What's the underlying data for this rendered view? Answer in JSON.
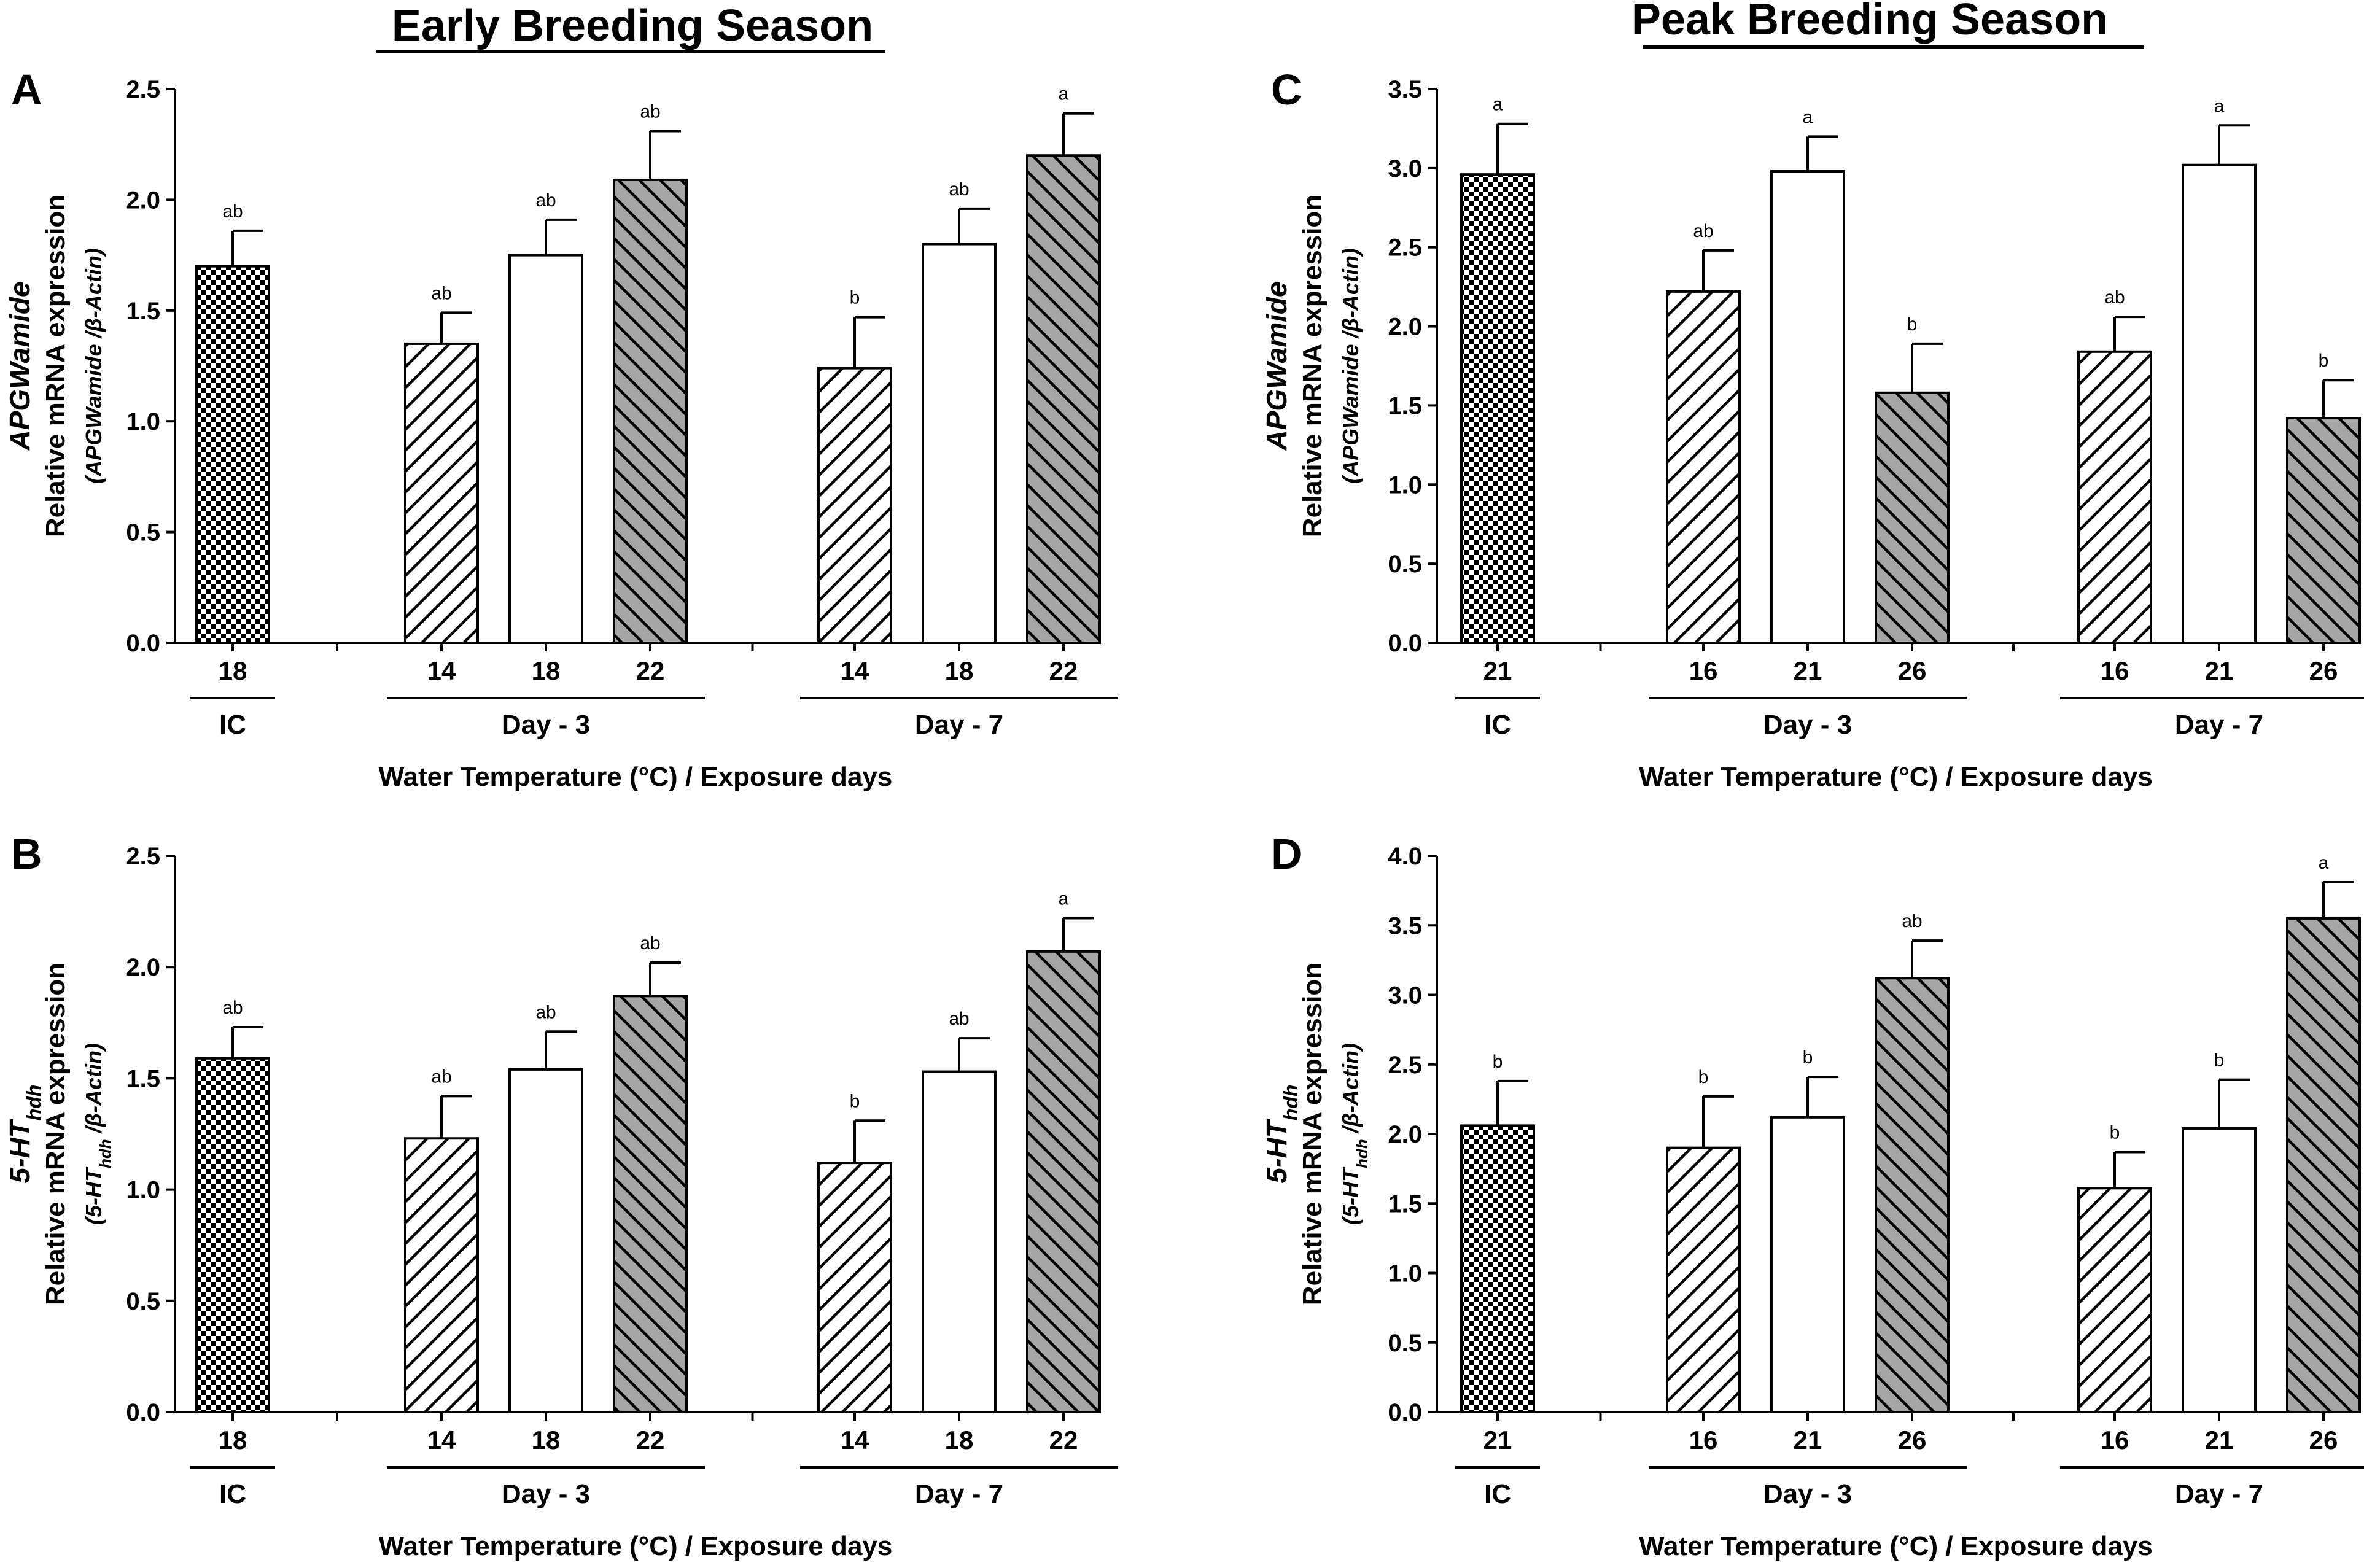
{
  "season_titles": [
    "Early Breeding Season",
    "Peak Breeding Season"
  ],
  "colors": {
    "ink": "#000000",
    "bar_white": "#ffffff",
    "bar_gray": "#a6a6a6"
  },
  "patterns": {
    "IC": "checker",
    "cool": "diag-right",
    "ambient": "plain",
    "warm": "diag-left-gray"
  },
  "chart_data": [
    {
      "type": "bar",
      "panel": "A",
      "season": "Early Breeding Season",
      "ylabel_gene": "APGWamide",
      "ylabel_main": "Relative mRNA expression",
      "ylabel_ratio": "(APGWamide /β-Actin)",
      "xlabel": "Water Temperature (°C) / Exposure days",
      "ylim": [
        0,
        2.5
      ],
      "yticks": [
        0,
        0.5,
        1.0,
        1.5,
        2.0,
        2.5
      ],
      "groups": [
        "IC",
        "Day - 3",
        "Day - 7"
      ],
      "bars": [
        {
          "group": 0,
          "label": "18",
          "value": 1.7,
          "err": 0.16,
          "letter": "ab",
          "fill": "IC"
        },
        {
          "group": 1,
          "label": "14",
          "value": 1.35,
          "err": 0.14,
          "letter": "ab",
          "fill": "cool"
        },
        {
          "group": 1,
          "label": "18",
          "value": 1.75,
          "err": 0.16,
          "letter": "ab",
          "fill": "ambient"
        },
        {
          "group": 1,
          "label": "22",
          "value": 2.09,
          "err": 0.22,
          "letter": "ab",
          "fill": "warm"
        },
        {
          "group": 2,
          "label": "14",
          "value": 1.24,
          "err": 0.23,
          "letter": "b",
          "fill": "cool"
        },
        {
          "group": 2,
          "label": "18",
          "value": 1.8,
          "err": 0.16,
          "letter": "ab",
          "fill": "ambient"
        },
        {
          "group": 2,
          "label": "22",
          "value": 2.2,
          "err": 0.19,
          "letter": "a",
          "fill": "warm"
        }
      ]
    },
    {
      "type": "bar",
      "panel": "B",
      "season": "Early Breeding Season",
      "ylabel_gene": "5-HT",
      "ylabel_gene_sub": "hdh",
      "ylabel_main": "Relative mRNA expression",
      "ylabel_ratio": "(5-HT",
      "ylabel_ratio_sub": "hdh",
      "ylabel_ratio_tail": " /β-Actin)",
      "xlabel": "Water Temperature (°C) / Exposure days",
      "ylim": [
        0,
        2.5
      ],
      "yticks": [
        0,
        0.5,
        1.0,
        1.5,
        2.0,
        2.5
      ],
      "groups": [
        "IC",
        "Day - 3",
        "Day - 7"
      ],
      "bars": [
        {
          "group": 0,
          "label": "18",
          "value": 1.59,
          "err": 0.14,
          "letter": "ab",
          "fill": "IC"
        },
        {
          "group": 1,
          "label": "14",
          "value": 1.23,
          "err": 0.19,
          "letter": "ab",
          "fill": "cool"
        },
        {
          "group": 1,
          "label": "18",
          "value": 1.54,
          "err": 0.17,
          "letter": "ab",
          "fill": "ambient"
        },
        {
          "group": 1,
          "label": "22",
          "value": 1.87,
          "err": 0.15,
          "letter": "ab",
          "fill": "warm"
        },
        {
          "group": 2,
          "label": "14",
          "value": 1.12,
          "err": 0.19,
          "letter": "b",
          "fill": "cool"
        },
        {
          "group": 2,
          "label": "18",
          "value": 1.53,
          "err": 0.15,
          "letter": "ab",
          "fill": "ambient"
        },
        {
          "group": 2,
          "label": "22",
          "value": 2.07,
          "err": 0.15,
          "letter": "a",
          "fill": "warm"
        }
      ]
    },
    {
      "type": "bar",
      "panel": "C",
      "season": "Peak Breeding Season",
      "ylabel_gene": "APGWamide",
      "ylabel_main": "Relative mRNA expression",
      "ylabel_ratio": "(APGWamide /β-Actin)",
      "xlabel": "Water Temperature (°C) / Exposure days",
      "ylim": [
        0,
        3.5
      ],
      "yticks": [
        0,
        0.5,
        1.0,
        1.5,
        2.0,
        2.5,
        3.0,
        3.5
      ],
      "groups": [
        "IC",
        "Day - 3",
        "Day - 7"
      ],
      "bars": [
        {
          "group": 0,
          "label": "21",
          "value": 2.96,
          "err": 0.32,
          "letter": "a",
          "fill": "IC"
        },
        {
          "group": 1,
          "label": "16",
          "value": 2.22,
          "err": 0.26,
          "letter": "ab",
          "fill": "cool"
        },
        {
          "group": 1,
          "label": "21",
          "value": 2.98,
          "err": 0.22,
          "letter": "a",
          "fill": "ambient"
        },
        {
          "group": 1,
          "label": "26",
          "value": 1.58,
          "err": 0.31,
          "letter": "b",
          "fill": "warm"
        },
        {
          "group": 2,
          "label": "16",
          "value": 1.84,
          "err": 0.22,
          "letter": "ab",
          "fill": "cool"
        },
        {
          "group": 2,
          "label": "21",
          "value": 3.02,
          "err": 0.25,
          "letter": "a",
          "fill": "ambient"
        },
        {
          "group": 2,
          "label": "26",
          "value": 1.42,
          "err": 0.24,
          "letter": "b",
          "fill": "warm"
        }
      ]
    },
    {
      "type": "bar",
      "panel": "D",
      "season": "Peak Breeding Season",
      "ylabel_gene": "5-HT",
      "ylabel_gene_sub": "hdh",
      "ylabel_main": "Relative mRNA expression",
      "ylabel_ratio": "(5-HT",
      "ylabel_ratio_sub": "hdh",
      "ylabel_ratio_tail": " /β-Actin)",
      "xlabel": "Water Temperature (°C) / Exposure days",
      "ylim": [
        0,
        4.0
      ],
      "yticks": [
        0,
        0.5,
        1.0,
        1.5,
        2.0,
        2.5,
        3.0,
        3.5,
        4.0
      ],
      "groups": [
        "IC",
        "Day - 3",
        "Day - 7"
      ],
      "bars": [
        {
          "group": 0,
          "label": "21",
          "value": 2.06,
          "err": 0.32,
          "letter": "b",
          "fill": "IC"
        },
        {
          "group": 1,
          "label": "16",
          "value": 1.9,
          "err": 0.37,
          "letter": "b",
          "fill": "cool"
        },
        {
          "group": 1,
          "label": "21",
          "value": 2.12,
          "err": 0.29,
          "letter": "b",
          "fill": "ambient"
        },
        {
          "group": 1,
          "label": "26",
          "value": 3.12,
          "err": 0.27,
          "letter": "ab",
          "fill": "warm"
        },
        {
          "group": 2,
          "label": "16",
          "value": 1.61,
          "err": 0.26,
          "letter": "b",
          "fill": "cool"
        },
        {
          "group": 2,
          "label": "21",
          "value": 2.04,
          "err": 0.35,
          "letter": "b",
          "fill": "ambient"
        },
        {
          "group": 2,
          "label": "26",
          "value": 3.55,
          "err": 0.26,
          "letter": "a",
          "fill": "warm"
        }
      ]
    }
  ]
}
